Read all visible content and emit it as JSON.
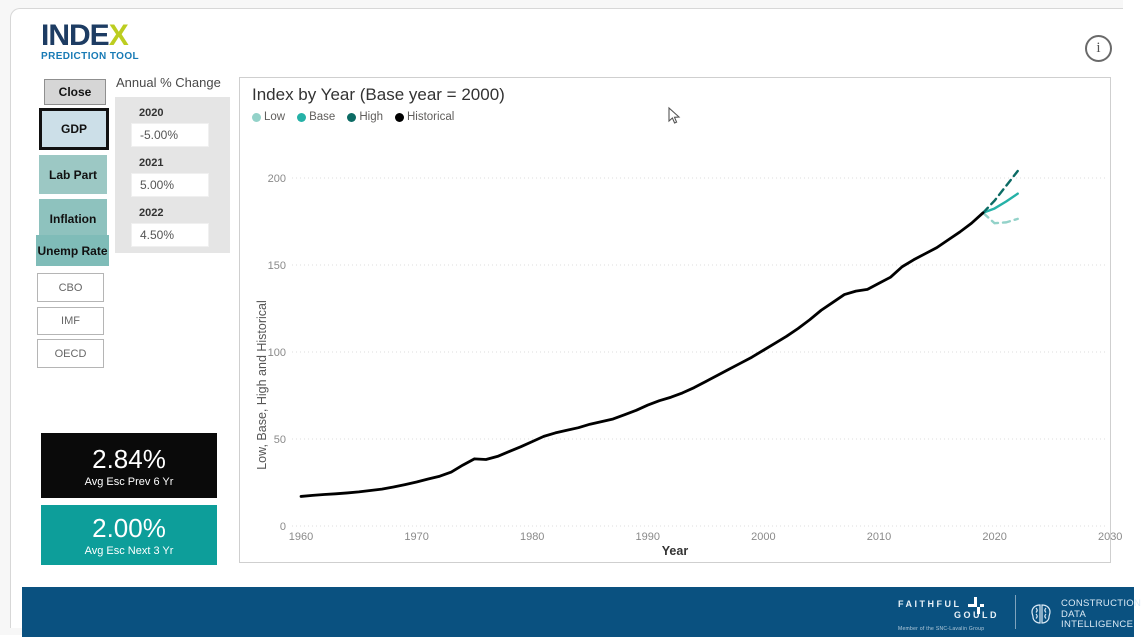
{
  "app": {
    "logo_main": "INDE",
    "logo_x": "X",
    "logo_sub": "PREDICTION TOOL",
    "info_icon": "i"
  },
  "sidebar": {
    "close_label": "Close",
    "metric_buttons": [
      {
        "label": "GDP",
        "selected": true
      },
      {
        "label": "Lab Part",
        "selected": false
      },
      {
        "label": "Inflation",
        "selected": false
      },
      {
        "label": "Unemp Rate",
        "selected": false
      }
    ],
    "source_buttons": [
      {
        "label": "CBO"
      },
      {
        "label": "IMF"
      },
      {
        "label": "OECD"
      }
    ]
  },
  "annual_change": {
    "title": "Annual % Change",
    "entries": [
      {
        "year": "2020",
        "value": "-5.00%"
      },
      {
        "year": "2021",
        "value": "5.00%"
      },
      {
        "year": "2022",
        "value": "4.50%"
      }
    ]
  },
  "stats": [
    {
      "value": "2.84%",
      "label": "Avg Esc Prev 6 Yr",
      "bg": "#0a0a0a"
    },
    {
      "value": "2.00%",
      "label": "Avg Esc Next 3 Yr",
      "bg": "#0d9e9a"
    }
  ],
  "chart_data": {
    "type": "line",
    "title": "Index by Year (Base year = 2000)",
    "xlabel": "Year",
    "ylabel": "Low, Base, High and Historical",
    "xlim": [
      1958,
      2031
    ],
    "ylim": [
      0,
      200
    ],
    "xticks": [
      1960,
      1970,
      1980,
      1990,
      2000,
      2010,
      2020,
      2030
    ],
    "yticks": [
      0,
      50,
      100,
      150,
      200
    ],
    "grid": "horizontal-dotted",
    "legend_position": "top-left",
    "series": [
      {
        "name": "Low",
        "color": "#93d2c9",
        "dash": true,
        "x_start": 2019,
        "values": [
          180,
          174,
          174.5,
          176.5
        ]
      },
      {
        "name": "Base",
        "color": "#25b1a7",
        "dash": false,
        "x_start": 2019,
        "values": [
          180,
          182.5,
          186.5,
          191
        ]
      },
      {
        "name": "High",
        "color": "#0c6b64",
        "dash": true,
        "x_start": 2019,
        "values": [
          180,
          187,
          195.5,
          204
        ]
      },
      {
        "name": "Historical",
        "color": "#000000",
        "dash": false,
        "x_start": 1960,
        "values": [
          17,
          17.6,
          18.1,
          18.5,
          19,
          19.6,
          20.4,
          21.2,
          22.4,
          23.8,
          25.3,
          27,
          28.6,
          31,
          35,
          38.6,
          38.2,
          40,
          42.8,
          45.5,
          48.5,
          51.5,
          53.5,
          55,
          56.5,
          58.5,
          60,
          61.5,
          64,
          66.5,
          69.5,
          72,
          74,
          76.5,
          79.5,
          83,
          86.5,
          90,
          93.5,
          97,
          101,
          105,
          109,
          113.5,
          118.5,
          124,
          128.5,
          133,
          135,
          136,
          139.5,
          143,
          149,
          153,
          156.5,
          160,
          164.5,
          169,
          174,
          180
        ]
      }
    ]
  },
  "footer": {
    "brand1_line1": "FAITHFUL",
    "brand1_line2": "GOULD",
    "brand1_sub": "Member of the SNC-Lavalin Group",
    "brand2_line1": "CONSTRUCTION DATA",
    "brand2_line2": "INTELLIGENCE",
    "bar_color": "#0a5180"
  }
}
